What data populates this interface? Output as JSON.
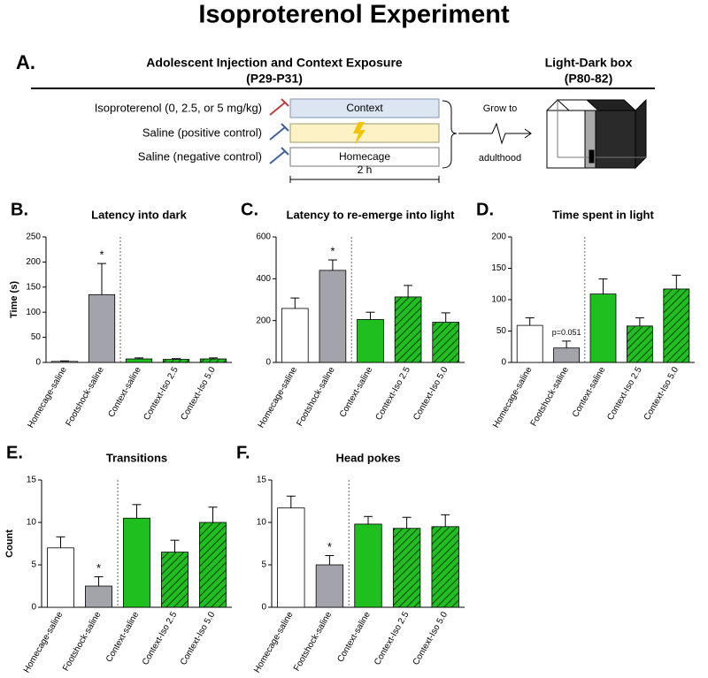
{
  "title": "Isoproterenol Experiment",
  "panel_a": {
    "label": "A.",
    "left_header": "Adolescent Injection and Context Exposure",
    "left_subheader": "(P29-P31)",
    "right_header": "Light-Dark box",
    "right_subheader": "(P80-82)",
    "rows": [
      {
        "group": "Isoproterenol (0, 2.5, or 5 mg/kg)",
        "box": "Context"
      },
      {
        "group": "Saline (positive control)",
        "box": null
      },
      {
        "group": "Saline (negative control)",
        "box": "Homecage"
      }
    ],
    "grow_top": "Grow to",
    "grow_bottom": "adulthood",
    "duration": "2 h"
  },
  "chart_data": [
    {
      "type": "bar",
      "panel": "B.",
      "title": "Latency into dark",
      "ylabel": "Time (s)",
      "categories": [
        "Homecage-saline",
        "Footshock-saline",
        "Context-saline",
        "Context-Iso 2.5",
        "Context-Iso 5.0"
      ],
      "values": [
        2,
        135,
        7,
        6,
        7
      ],
      "errors": [
        1,
        62,
        2,
        1.5,
        2
      ],
      "colors": [
        "#ffffff",
        "#a3a3ab",
        "#1fbf1f",
        "#1fbf1f",
        "#1fbf1f"
      ],
      "hatch": [
        false,
        false,
        false,
        true,
        true
      ],
      "annotations": [
        null,
        "*",
        null,
        null,
        null
      ],
      "ylim": [
        0,
        250
      ],
      "yticks": [
        0,
        50,
        100,
        150,
        200,
        250
      ]
    },
    {
      "type": "bar",
      "panel": "C.",
      "title": "Latency to re-emerge into light",
      "categories": [
        "Homecage-saline",
        "Footshock-saline",
        "Context-saline",
        "Context-Iso 2.5",
        "Context-Iso 5.0"
      ],
      "values": [
        258,
        440,
        205,
        313,
        192
      ],
      "errors": [
        50,
        50,
        35,
        55,
        45
      ],
      "colors": [
        "#ffffff",
        "#a3a3ab",
        "#1fbf1f",
        "#1fbf1f",
        "#1fbf1f"
      ],
      "hatch": [
        false,
        false,
        false,
        true,
        true
      ],
      "annotations": [
        null,
        "*",
        null,
        null,
        null
      ],
      "ylim": [
        0,
        600
      ],
      "yticks": [
        0,
        200,
        400,
        600
      ]
    },
    {
      "type": "bar",
      "panel": "D.",
      "title": "Time spent in light",
      "categories": [
        "Homecage-saline",
        "Footshock-saline",
        "Context-saline",
        "Context-Iso 2.5",
        "Context-Iso 5.0"
      ],
      "values": [
        59,
        23,
        109,
        58,
        117
      ],
      "errors": [
        12,
        11,
        24,
        13,
        22
      ],
      "colors": [
        "#ffffff",
        "#a3a3ab",
        "#1fbf1f",
        "#1fbf1f",
        "#1fbf1f"
      ],
      "hatch": [
        false,
        false,
        false,
        true,
        true
      ],
      "annotations": [
        null,
        "p=0.051",
        null,
        null,
        null
      ],
      "ylim": [
        0,
        200
      ],
      "yticks": [
        0,
        50,
        100,
        150,
        200
      ]
    },
    {
      "type": "bar",
      "panel": "E.",
      "title": "Transitions",
      "ylabel": "Count",
      "categories": [
        "Homecage-saline",
        "Footshock-saline",
        "Context-saline",
        "Context-Iso 2.5",
        "Context-Iso 5.0"
      ],
      "values": [
        7.0,
        2.5,
        10.5,
        6.5,
        10.0
      ],
      "errors": [
        1.3,
        1.1,
        1.6,
        1.4,
        1.8
      ],
      "colors": [
        "#ffffff",
        "#a3a3ab",
        "#1fbf1f",
        "#1fbf1f",
        "#1fbf1f"
      ],
      "hatch": [
        false,
        false,
        false,
        true,
        true
      ],
      "annotations": [
        null,
        "*",
        null,
        null,
        null
      ],
      "ylim": [
        0,
        15
      ],
      "yticks": [
        0,
        5,
        10,
        15
      ]
    },
    {
      "type": "bar",
      "panel": "F.",
      "title": "Head pokes",
      "categories": [
        "Homecage-saline",
        "Footshock-saline",
        "Context-saline",
        "Context-Iso 2.5",
        "Context-Iso 5.0"
      ],
      "values": [
        11.7,
        5.0,
        9.8,
        9.3,
        9.5
      ],
      "errors": [
        1.4,
        1.1,
        0.9,
        1.3,
        1.4
      ],
      "colors": [
        "#ffffff",
        "#a3a3ab",
        "#1fbf1f",
        "#1fbf1f",
        "#1fbf1f"
      ],
      "hatch": [
        false,
        false,
        false,
        true,
        true
      ],
      "annotations": [
        null,
        "*",
        null,
        null,
        null
      ],
      "ylim": [
        0,
        15
      ],
      "yticks": [
        0,
        5,
        10,
        15
      ]
    }
  ]
}
